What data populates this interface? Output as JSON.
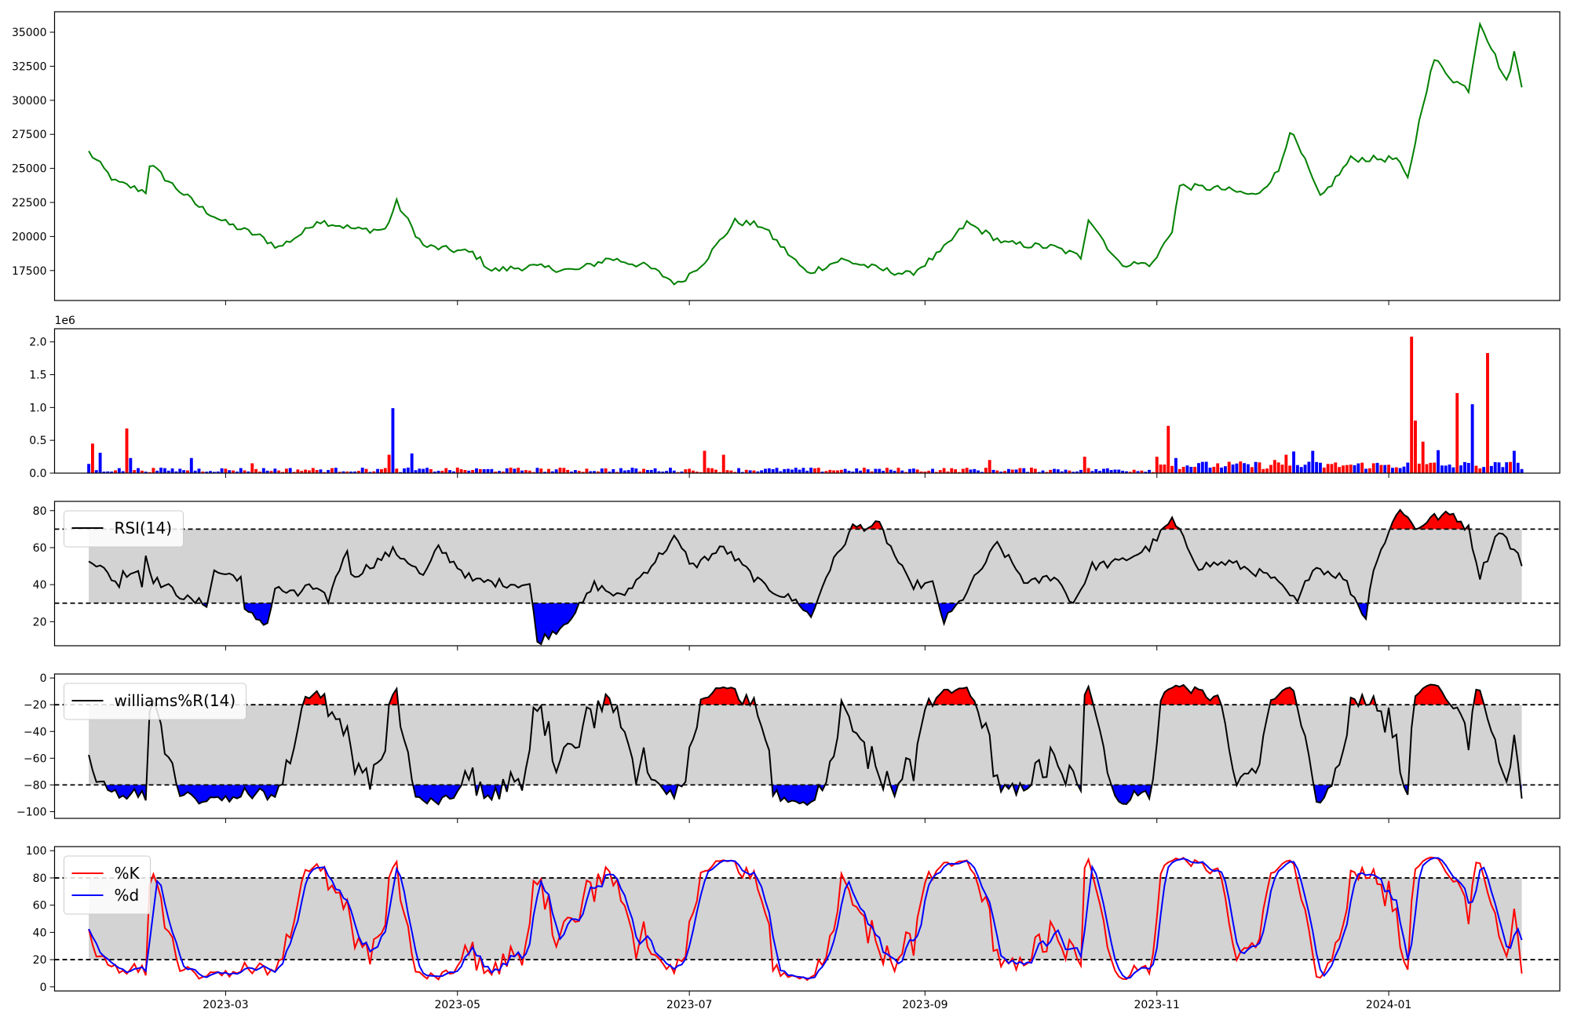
{
  "chart_data": [
    {
      "type": "line",
      "panel": "price",
      "series": [
        {
          "color": "#008000"
        }
      ],
      "ylim": [
        15300,
        36500
      ],
      "yticks": [
        17500,
        20000,
        22500,
        25000,
        27500,
        30000,
        32500,
        35000
      ],
      "ytick_labels": [
        "17500",
        "20000",
        "22500",
        "25000",
        "27500",
        "30000",
        "32500",
        "35000"
      ],
      "keypoints": [
        [
          "2023-01-24",
          26200
        ],
        [
          "2023-01-31",
          24000
        ],
        [
          "2023-02-08",
          23300
        ],
        [
          "2023-02-09",
          25300
        ],
        [
          "2023-02-15",
          23800
        ],
        [
          "2023-02-22",
          22200
        ],
        [
          "2023-03-01",
          21000
        ],
        [
          "2023-03-10",
          20000
        ],
        [
          "2023-03-15",
          19200
        ],
        [
          "2023-03-22",
          20400
        ],
        [
          "2023-03-25",
          21200
        ],
        [
          "2023-04-05",
          20500
        ],
        [
          "2023-04-12",
          20500
        ],
        [
          "2023-04-15",
          22500
        ],
        [
          "2023-04-22",
          19300
        ],
        [
          "2023-05-05",
          18800
        ],
        [
          "2023-05-10",
          17500
        ],
        [
          "2023-05-20",
          17800
        ],
        [
          "2023-06-01",
          17500
        ],
        [
          "2023-06-10",
          18400
        ],
        [
          "2023-06-20",
          17800
        ],
        [
          "2023-06-28",
          16500
        ],
        [
          "2023-07-05",
          18200
        ],
        [
          "2023-07-13",
          21100
        ],
        [
          "2023-07-20",
          20800
        ],
        [
          "2023-08-01",
          17300
        ],
        [
          "2023-08-10",
          18300
        ],
        [
          "2023-08-20",
          17600
        ],
        [
          "2023-08-28",
          17200
        ],
        [
          "2023-09-05",
          18800
        ],
        [
          "2023-09-12",
          21000
        ],
        [
          "2023-09-22",
          19500
        ],
        [
          "2023-10-05",
          19200
        ],
        [
          "2023-10-12",
          18500
        ],
        [
          "2023-10-14",
          21400
        ],
        [
          "2023-10-22",
          18000
        ],
        [
          "2023-10-31",
          18000
        ],
        [
          "2023-11-05",
          20500
        ],
        [
          "2023-11-07",
          23700
        ],
        [
          "2023-11-18",
          23500
        ],
        [
          "2023-11-27",
          23000
        ],
        [
          "2023-12-03",
          24800
        ],
        [
          "2023-12-06",
          27800
        ],
        [
          "2023-12-10",
          25500
        ],
        [
          "2023-12-14",
          22800
        ],
        [
          "2023-12-22",
          25700
        ],
        [
          "2024-01-03",
          25700
        ],
        [
          "2024-01-06",
          24200
        ],
        [
          "2024-01-10",
          29800
        ],
        [
          "2024-01-13",
          33000
        ],
        [
          "2024-01-18",
          31500
        ],
        [
          "2024-01-22",
          30800
        ],
        [
          "2024-01-25",
          35800
        ],
        [
          "2024-02-01",
          31300
        ],
        [
          "2024-02-03",
          33500
        ],
        [
          "2024-02-05",
          31000
        ]
      ]
    },
    {
      "type": "bar",
      "panel": "volume",
      "scale_label": "1e6",
      "ylim": [
        0,
        2.2
      ],
      "yticks": [
        0.0,
        0.5,
        1.0,
        1.5,
        2.0
      ],
      "ytick_labels": [
        "0.0",
        "0.5",
        "1.0",
        "1.5",
        "2.0"
      ],
      "colors": {
        "up": "#ff0000",
        "down": "#0000ff"
      },
      "notable_bars": [
        [
          "2023-01-24",
          0.14,
          "down"
        ],
        [
          "2023-01-25",
          0.45,
          "up"
        ],
        [
          "2023-01-27",
          0.31,
          "down"
        ],
        [
          "2023-02-03",
          0.68,
          "up"
        ],
        [
          "2023-02-04",
          0.23,
          "down"
        ],
        [
          "2023-02-20",
          0.23,
          "down"
        ],
        [
          "2023-03-08",
          0.15,
          "up"
        ],
        [
          "2023-04-13",
          0.28,
          "up"
        ],
        [
          "2023-04-14",
          0.99,
          "down"
        ],
        [
          "2023-04-19",
          0.3,
          "down"
        ],
        [
          "2023-07-05",
          0.34,
          "up"
        ],
        [
          "2023-07-10",
          0.28,
          "up"
        ],
        [
          "2023-09-18",
          0.2,
          "up"
        ],
        [
          "2023-10-13",
          0.25,
          "up"
        ],
        [
          "2023-11-01",
          0.25,
          "up"
        ],
        [
          "2023-11-04",
          0.72,
          "up"
        ],
        [
          "2023-11-06",
          0.23,
          "down"
        ],
        [
          "2023-12-02",
          0.2,
          "up"
        ],
        [
          "2023-12-05",
          0.28,
          "up"
        ],
        [
          "2023-12-07",
          0.33,
          "down"
        ],
        [
          "2023-12-12",
          0.34,
          "down"
        ],
        [
          "2024-01-07",
          2.08,
          "up"
        ],
        [
          "2024-01-08",
          0.8,
          "up"
        ],
        [
          "2024-01-10",
          0.48,
          "up"
        ],
        [
          "2024-01-14",
          0.35,
          "down"
        ],
        [
          "2024-01-19",
          1.22,
          "up"
        ],
        [
          "2024-01-23",
          1.05,
          "down"
        ],
        [
          "2024-01-27",
          1.83,
          "up"
        ],
        [
          "2024-02-03",
          0.34,
          "down"
        ]
      ]
    },
    {
      "type": "line",
      "panel": "rsi",
      "legend": [
        "RSI(14)"
      ],
      "legend_placement": "upper-left",
      "ylim": [
        7,
        85
      ],
      "yticks": [
        20,
        40,
        60,
        80
      ],
      "ytick_labels": [
        "20",
        "40",
        "60",
        "80"
      ],
      "band": [
        30,
        70
      ],
      "fill_colors": {
        "above": "#ff0000",
        "below": "#0000ff",
        "band": "#d3d3d3"
      },
      "keypoints": [
        [
          "2023-01-24",
          55
        ],
        [
          "2023-02-01",
          40
        ],
        [
          "2023-02-02",
          46
        ],
        [
          "2023-02-06",
          48
        ],
        [
          "2023-02-07",
          39
        ],
        [
          "2023-02-08",
          56
        ],
        [
          "2023-02-10",
          43
        ],
        [
          "2023-02-20",
          31
        ],
        [
          "2023-02-24",
          30
        ],
        [
          "2023-02-26",
          47
        ],
        [
          "2023-03-05",
          44
        ],
        [
          "2023-03-06",
          25
        ],
        [
          "2023-03-12",
          19
        ],
        [
          "2023-03-14",
          38
        ],
        [
          "2023-03-20",
          34
        ],
        [
          "2023-03-22",
          40
        ],
        [
          "2023-03-28",
          32
        ],
        [
          "2023-04-02",
          60
        ],
        [
          "2023-04-03",
          44
        ],
        [
          "2023-04-14",
          58
        ],
        [
          "2023-04-18",
          53
        ],
        [
          "2023-04-22",
          44
        ],
        [
          "2023-04-26",
          60
        ],
        [
          "2023-05-05",
          42
        ],
        [
          "2023-05-12",
          41
        ],
        [
          "2023-05-20",
          40
        ],
        [
          "2023-05-22",
          9
        ],
        [
          "2023-05-28",
          17
        ],
        [
          "2023-06-03",
          30
        ],
        [
          "2023-06-06",
          40
        ],
        [
          "2023-06-13",
          33
        ],
        [
          "2023-06-22",
          53
        ],
        [
          "2023-06-27",
          65
        ],
        [
          "2023-07-02",
          50
        ],
        [
          "2023-07-10",
          60
        ],
        [
          "2023-07-20",
          40
        ],
        [
          "2023-07-30",
          30
        ],
        [
          "2023-08-02",
          22
        ],
        [
          "2023-08-06",
          45
        ],
        [
          "2023-08-10",
          60
        ],
        [
          "2023-08-13",
          71
        ],
        [
          "2023-08-20",
          72
        ],
        [
          "2023-08-24",
          56
        ],
        [
          "2023-08-28",
          40
        ],
        [
          "2023-09-03",
          40
        ],
        [
          "2023-09-06",
          20
        ],
        [
          "2023-09-10",
          30
        ],
        [
          "2023-09-20",
          62
        ],
        [
          "2023-09-28",
          40
        ],
        [
          "2023-10-05",
          45
        ],
        [
          "2023-10-10",
          30
        ],
        [
          "2023-10-15",
          50
        ],
        [
          "2023-10-22",
          52
        ],
        [
          "2023-10-30",
          60
        ],
        [
          "2023-11-05",
          75
        ],
        [
          "2023-11-12",
          50
        ],
        [
          "2023-11-20",
          52
        ],
        [
          "2023-12-01",
          44
        ],
        [
          "2023-12-08",
          30
        ],
        [
          "2023-12-12",
          50
        ],
        [
          "2023-12-20",
          44
        ],
        [
          "2023-12-26",
          22
        ],
        [
          "2023-12-28",
          50
        ],
        [
          "2024-01-04",
          82
        ],
        [
          "2024-01-08",
          70
        ],
        [
          "2024-01-12",
          76
        ],
        [
          "2024-01-18",
          78
        ],
        [
          "2024-01-22",
          70
        ],
        [
          "2024-01-25",
          45
        ],
        [
          "2024-01-30",
          70
        ],
        [
          "2024-02-05",
          52
        ]
      ]
    },
    {
      "type": "line",
      "panel": "williams",
      "legend": [
        "williams%R(14)"
      ],
      "legend_placement": "upper-left",
      "ylim": [
        -105,
        3
      ],
      "yticks": [
        -100,
        -80,
        -60,
        -40,
        -20,
        0
      ],
      "ytick_labels": [
        "−100",
        "−80",
        "−60",
        "−40",
        "−20",
        "0"
      ],
      "band": [
        -80,
        -20
      ],
      "fill_colors": {
        "above": "#ff0000",
        "below": "#0000ff",
        "band": "#d3d3d3"
      }
    },
    {
      "type": "line",
      "panel": "stochastic",
      "legend": [
        "%K",
        "%d"
      ],
      "legend_placement": "upper-left",
      "series": [
        {
          "name": "%K",
          "color": "#ff0000"
        },
        {
          "name": "%d",
          "color": "#0000ff"
        }
      ],
      "ylim": [
        -3,
        103
      ],
      "yticks": [
        0,
        20,
        40,
        60,
        80,
        100
      ],
      "ytick_labels": [
        "0",
        "20",
        "40",
        "60",
        "80",
        "100"
      ],
      "band": [
        20,
        80
      ]
    }
  ],
  "x_axis": {
    "type": "date",
    "range": [
      "2023-01-15",
      "2024-02-15"
    ],
    "data_range": [
      "2023-01-24",
      "2024-02-05"
    ],
    "ticks": [
      "2023-03-01",
      "2023-05-01",
      "2023-07-01",
      "2023-09-01",
      "2023-11-01",
      "2024-01-01"
    ],
    "tick_labels": [
      "2023-03",
      "2023-05",
      "2023-07",
      "2023-09",
      "2023-11",
      "2024-01"
    ]
  }
}
